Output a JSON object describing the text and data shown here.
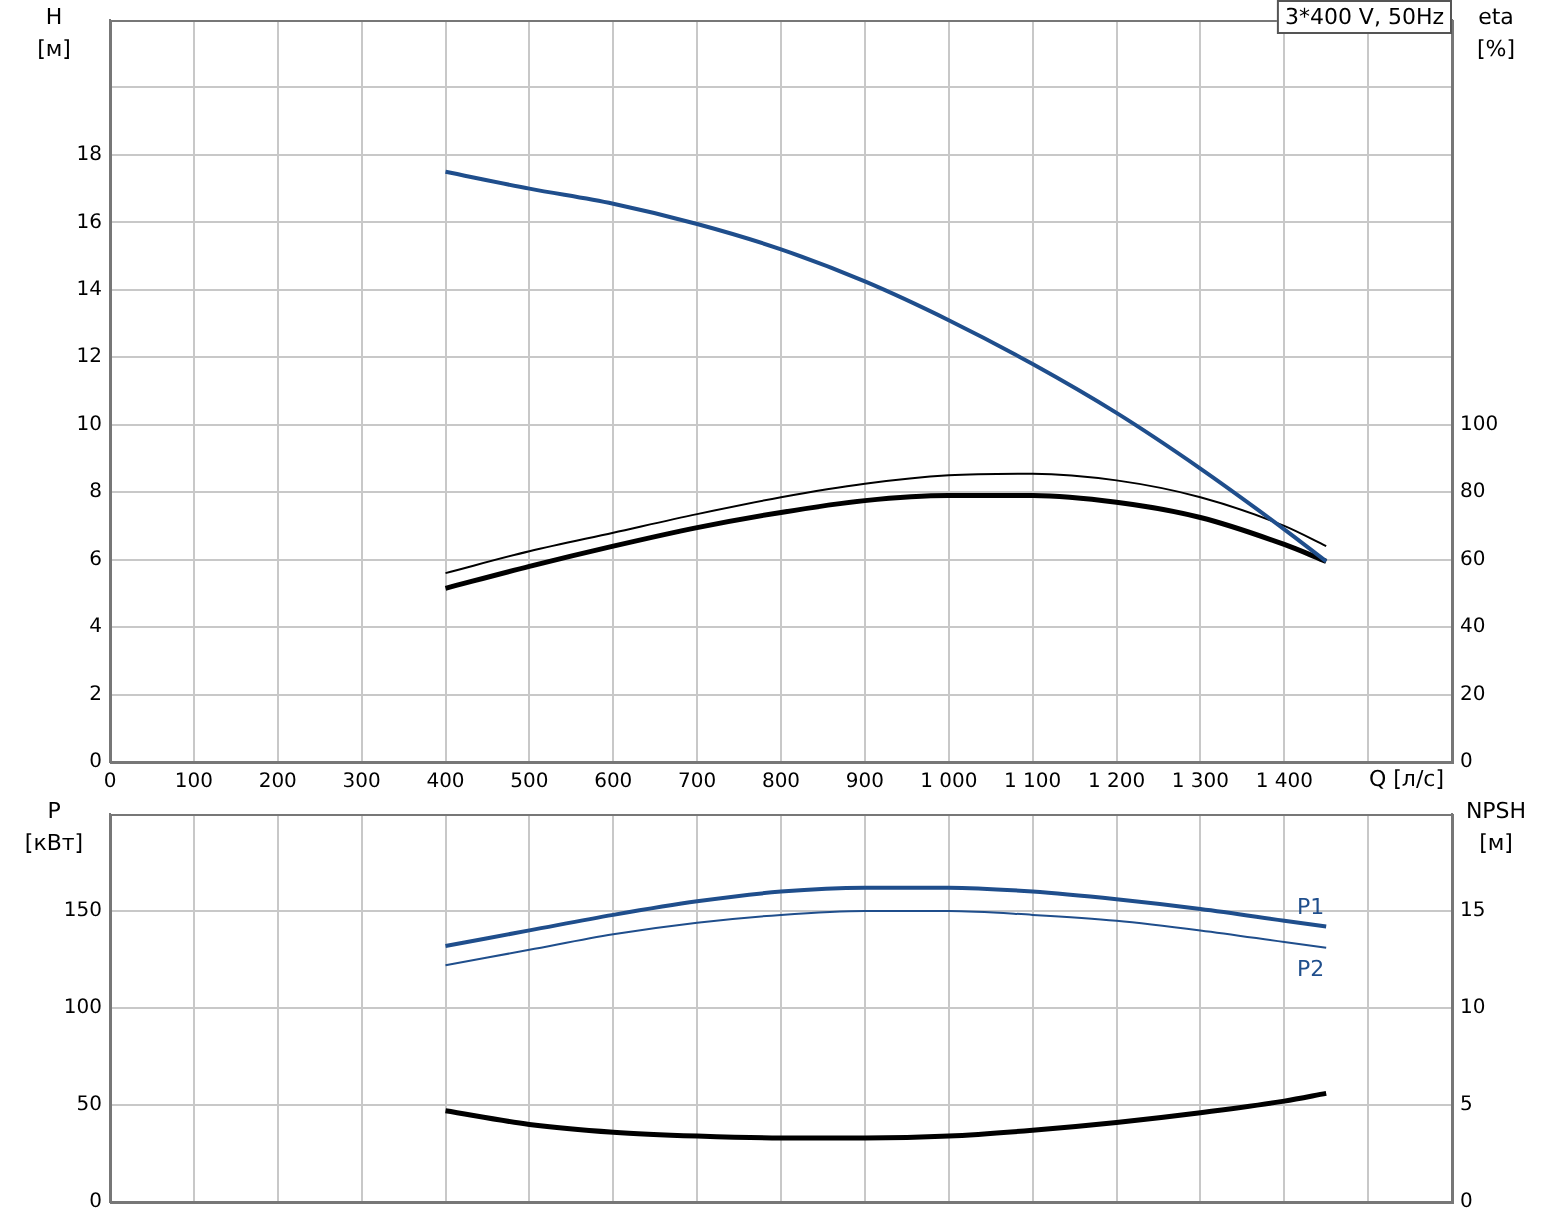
{
  "chart_data": [
    {
      "type": "line",
      "title": "3*400 V, 50Hz",
      "xlabel": "Q [л/с]",
      "ylabel": "H [м]",
      "y2label": "eta [%]",
      "x": [
        400,
        500,
        600,
        700,
        800,
        900,
        1000,
        1100,
        1200,
        1300,
        1400,
        1450
      ],
      "xlim": [
        0,
        1600
      ],
      "xticks": [
        0,
        100,
        200,
        300,
        400,
        500,
        600,
        700,
        800,
        900,
        {
          "value": 1000,
          "label": "1 000"
        },
        {
          "value": 1100,
          "label": "1 100"
        },
        {
          "value": 1200,
          "label": "1 200"
        },
        {
          "value": 1300,
          "label": "1 300"
        },
        {
          "value": 1400,
          "label": "1 400"
        },
        {
          "value": 1500,
          "label": null
        }
      ],
      "ylim": [
        0,
        22
      ],
      "yticks": [
        0,
        2,
        4,
        6,
        8,
        10,
        12,
        14,
        16,
        18,
        {
          "value": 20,
          "label": null
        }
      ],
      "y2lim": [
        0,
        220
      ],
      "y2ticks": [
        0,
        20,
        40,
        60,
        80,
        100
      ],
      "grid": true,
      "legend": false,
      "marker": "none",
      "series": [
        {
          "color": "#1f4e8c",
          "values": [
            17.5,
            17.0,
            16.55,
            15.95,
            15.2,
            14.25,
            13.1,
            11.8,
            10.35,
            8.7,
            6.9,
            5.95
          ]
        },
        {
          "color": "#000000",
          "axis": "y2",
          "values": [
            56,
            62.5,
            68,
            73.5,
            78.5,
            82.5,
            85,
            85.5,
            83.5,
            78.5,
            70,
            64
          ]
        },
        {
          "color": "#000000",
          "axis": "y2",
          "values": [
            51.5,
            58,
            64,
            69.5,
            74,
            77.5,
            79,
            79,
            77,
            72.5,
            64.5,
            59.5
          ]
        }
      ]
    },
    {
      "type": "line",
      "ylabel": "P [кВт]",
      "y2label": "NPSH [м]",
      "x": [
        400,
        500,
        600,
        700,
        800,
        900,
        1000,
        1100,
        1200,
        1300,
        1400,
        1450
      ],
      "xlim": [
        0,
        1600
      ],
      "xticks": [
        0,
        100,
        200,
        300,
        400,
        500,
        600,
        700,
        800,
        900,
        1000,
        1100,
        1200,
        1300,
        1400,
        1500
      ],
      "ylim": [
        0,
        200
      ],
      "yticks": [
        0,
        50,
        100,
        150
      ],
      "y2lim": [
        0,
        20
      ],
      "y2ticks": [
        0,
        5,
        10,
        15
      ],
      "tick_labels": "y",
      "grid": true,
      "legend": false,
      "marker": "none",
      "series": [
        {
          "name": "P1",
          "color": "#1f4e8c",
          "values": [
            132,
            140,
            148,
            155,
            160,
            162,
            162,
            160,
            156,
            151,
            145,
            142
          ]
        },
        {
          "name": "P2",
          "color": "#1f4e8c",
          "values": [
            122,
            130,
            138,
            144,
            148,
            150,
            150,
            148,
            145,
            140,
            134,
            131
          ]
        },
        {
          "color": "#000000",
          "axis": "y2",
          "values": [
            4.7,
            4.0,
            3.6,
            3.4,
            3.3,
            3.3,
            3.4,
            3.7,
            4.1,
            4.6,
            5.2,
            5.6
          ]
        }
      ]
    }
  ]
}
